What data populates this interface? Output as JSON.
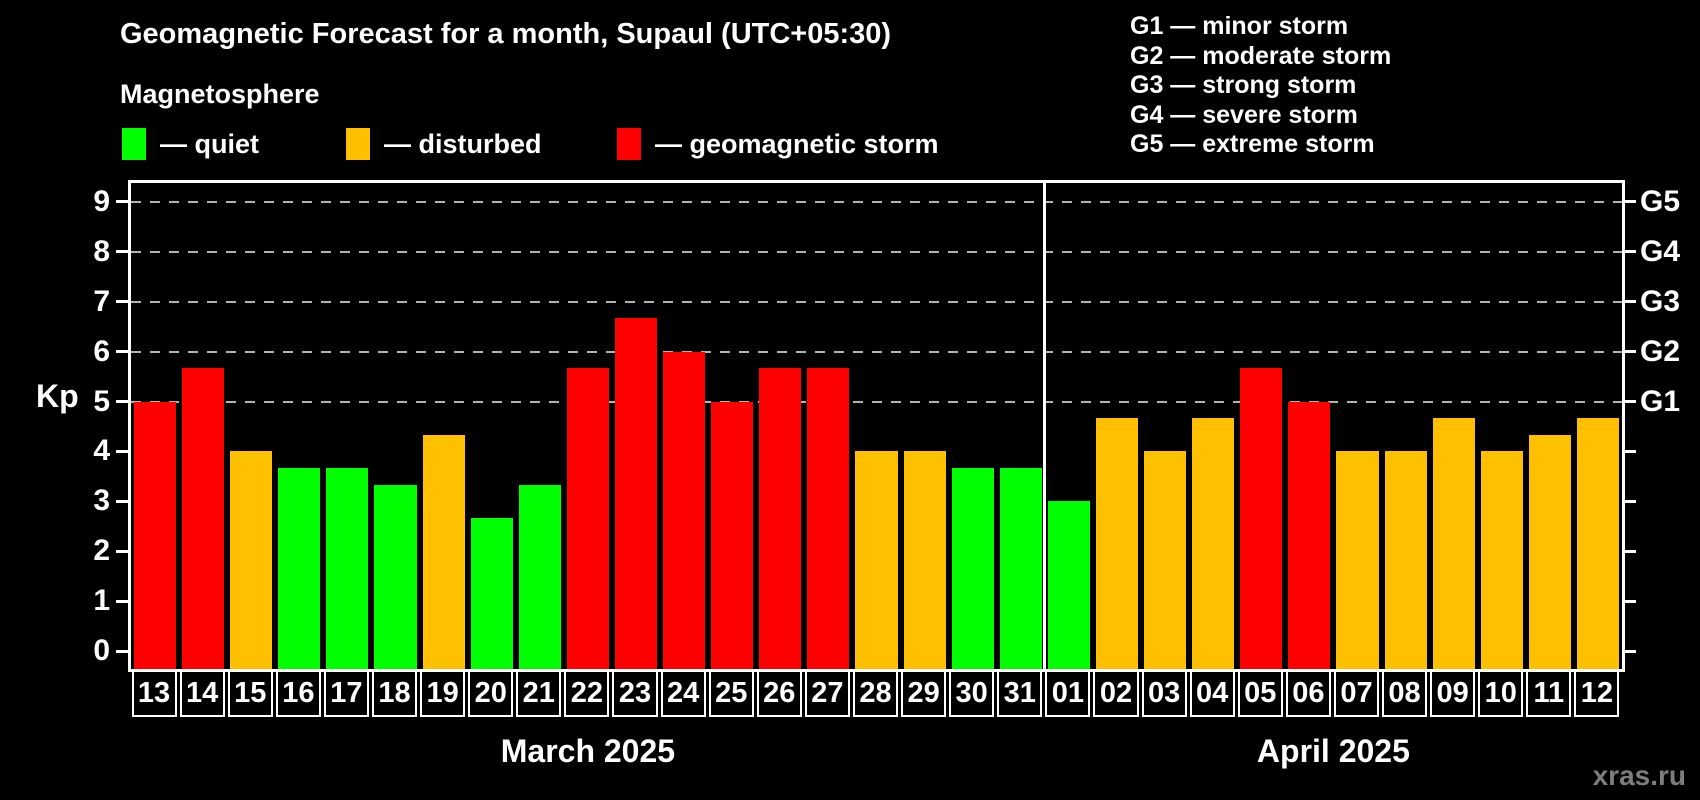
{
  "title": "Geomagnetic Forecast for a month, Supaul (UTC+05:30)",
  "subtitle": "Magnetosphere",
  "watermark": "xras.ru",
  "colors": {
    "quiet": "#00ff00",
    "disturbed": "#ffc000",
    "storm": "#ff0000",
    "background": "#000000",
    "grid": "#b3b3b3",
    "text": "#ffffff",
    "watermark": "#7d7d7d"
  },
  "legend": {
    "items": [
      {
        "status": "quiet",
        "label": "— quiet"
      },
      {
        "status": "disturbed",
        "label": "— disturbed"
      },
      {
        "status": "storm",
        "label": "— geomagnetic storm"
      }
    ]
  },
  "g_legend": {
    "lines": [
      "G1 — minor storm",
      "G2 — moderate storm",
      "G3 — strong storm",
      "G4 — severe storm",
      "G5 — extreme storm"
    ]
  },
  "chart_data": {
    "type": "bar",
    "title": "Geomagnetic Forecast for a month, Supaul (UTC+05:30)",
    "ylabel": "Kp",
    "ylim": [
      0,
      9
    ],
    "yticks": [
      0,
      1,
      2,
      3,
      4,
      5,
      6,
      7,
      8,
      9
    ],
    "grid_levels": [
      5,
      6,
      7,
      8,
      9
    ],
    "right_axis_ticks": [
      {
        "label": "G1",
        "kp": 5
      },
      {
        "label": "G2",
        "kp": 6
      },
      {
        "label": "G3",
        "kp": 7
      },
      {
        "label": "G4",
        "kp": 8
      },
      {
        "label": "G5",
        "kp": 9
      }
    ],
    "legend_position": "top",
    "grid": "dashed-horizontal-storm-levels-only",
    "months": [
      {
        "label": "March 2025",
        "days": 19
      },
      {
        "label": "April 2025",
        "days": 12
      }
    ],
    "days": [
      {
        "date": "13",
        "kp": 5.0,
        "status": "storm"
      },
      {
        "date": "14",
        "kp": 5.67,
        "status": "storm"
      },
      {
        "date": "15",
        "kp": 4.0,
        "status": "disturbed"
      },
      {
        "date": "16",
        "kp": 3.67,
        "status": "quiet"
      },
      {
        "date": "17",
        "kp": 3.67,
        "status": "quiet"
      },
      {
        "date": "18",
        "kp": 3.33,
        "status": "quiet"
      },
      {
        "date": "19",
        "kp": 4.33,
        "status": "disturbed"
      },
      {
        "date": "20",
        "kp": 2.67,
        "status": "quiet"
      },
      {
        "date": "21",
        "kp": 3.33,
        "status": "quiet"
      },
      {
        "date": "22",
        "kp": 5.67,
        "status": "storm"
      },
      {
        "date": "23",
        "kp": 6.67,
        "status": "storm"
      },
      {
        "date": "24",
        "kp": 6.0,
        "status": "storm"
      },
      {
        "date": "25",
        "kp": 5.0,
        "status": "storm"
      },
      {
        "date": "26",
        "kp": 5.67,
        "status": "storm"
      },
      {
        "date": "27",
        "kp": 5.67,
        "status": "storm"
      },
      {
        "date": "28",
        "kp": 4.0,
        "status": "disturbed"
      },
      {
        "date": "29",
        "kp": 4.0,
        "status": "disturbed"
      },
      {
        "date": "30",
        "kp": 3.67,
        "status": "quiet"
      },
      {
        "date": "31",
        "kp": 3.67,
        "status": "quiet"
      },
      {
        "date": "01",
        "kp": 3.0,
        "status": "quiet"
      },
      {
        "date": "02",
        "kp": 4.67,
        "status": "disturbed"
      },
      {
        "date": "03",
        "kp": 4.0,
        "status": "disturbed"
      },
      {
        "date": "04",
        "kp": 4.67,
        "status": "disturbed"
      },
      {
        "date": "05",
        "kp": 5.67,
        "status": "storm"
      },
      {
        "date": "06",
        "kp": 5.0,
        "status": "storm"
      },
      {
        "date": "07",
        "kp": 4.0,
        "status": "disturbed"
      },
      {
        "date": "08",
        "kp": 4.0,
        "status": "disturbed"
      },
      {
        "date": "09",
        "kp": 4.67,
        "status": "disturbed"
      },
      {
        "date": "10",
        "kp": 4.0,
        "status": "disturbed"
      },
      {
        "date": "11",
        "kp": 4.33,
        "status": "disturbed"
      },
      {
        "date": "12",
        "kp": 4.67,
        "status": "disturbed"
      }
    ]
  }
}
